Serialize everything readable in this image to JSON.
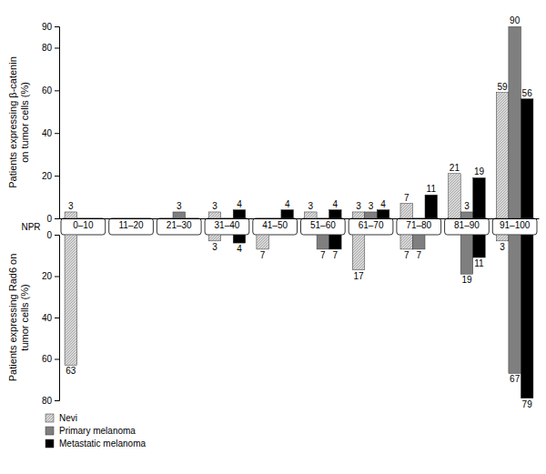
{
  "chart_data": [
    {
      "type": "bar",
      "x_label": "NPR",
      "y_label": "Patients expressing β-catenin on tumor cells (%)",
      "categories": [
        "0–10",
        "11–20",
        "21–30",
        "31–40",
        "41–50",
        "51–60",
        "61–70",
        "71–80",
        "81–90",
        "91–100"
      ],
      "ylim": [
        0,
        90
      ],
      "yticks": [
        0,
        20,
        40,
        60,
        80,
        90
      ],
      "data_labels": true,
      "legend": "bottom",
      "series": [
        {
          "name": "Nevi",
          "color": "#d9d9d9",
          "values": [
            3,
            null,
            null,
            3,
            null,
            3,
            3,
            7,
            21,
            59
          ]
        },
        {
          "name": "Primary melanoma",
          "color": "#7f7f7f",
          "values": [
            null,
            null,
            3,
            null,
            null,
            null,
            3,
            null,
            3,
            90
          ]
        },
        {
          "name": "Metastatic melanoma",
          "color": "#000000",
          "values": [
            null,
            null,
            null,
            4,
            4,
            4,
            4,
            11,
            19,
            56
          ]
        }
      ]
    },
    {
      "type": "bar",
      "y_label": "Patients expressing Rad6 on tumor cells (%)",
      "ylim": [
        80,
        0
      ],
      "yticks": [
        0,
        20,
        40,
        60,
        80
      ],
      "data_labels": true,
      "series": [
        {
          "color": "#d9d9d9",
          "values": [
            63,
            null,
            null,
            3,
            7,
            null,
            17,
            7,
            null,
            3
          ]
        },
        {
          "color": "#7f7f7f",
          "values": [
            null,
            null,
            null,
            null,
            null,
            7,
            null,
            7,
            19,
            67
          ]
        },
        {
          "color": "#000000",
          "values": [
            null,
            null,
            null,
            4,
            null,
            7,
            null,
            null,
            11,
            79
          ]
        }
      ]
    }
  ]
}
